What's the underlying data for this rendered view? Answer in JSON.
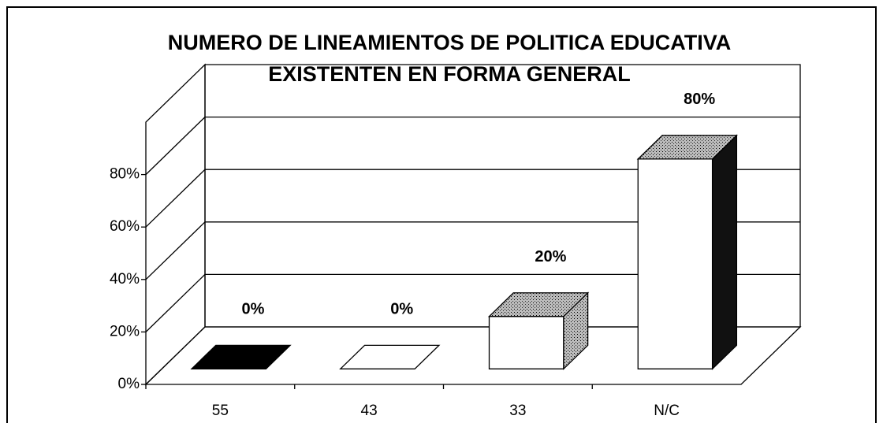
{
  "chart_data": {
    "type": "bar3d",
    "title": [
      "NUMERO DE LINEAMIENTOS DE POLITICA EDUCATIVA",
      "EXISTENTEN EN FORMA GENERAL"
    ],
    "categories": [
      "55",
      "43",
      "33",
      "N/C"
    ],
    "values": [
      0,
      0,
      20,
      80
    ],
    "value_labels": [
      "0%",
      "0%",
      "20%",
      "80%"
    ],
    "colors": [
      "#000000",
      "#ffffff",
      "#ffffff",
      "#ffffff"
    ],
    "ylim": [
      0,
      100
    ],
    "yticks": [
      {
        "value": 0,
        "label": "0%"
      },
      {
        "value": 20,
        "label": "20%"
      },
      {
        "value": 40,
        "label": "40%"
      },
      {
        "value": 60,
        "label": "60%"
      },
      {
        "value": 80,
        "label": "80%"
      }
    ],
    "grid": true
  }
}
